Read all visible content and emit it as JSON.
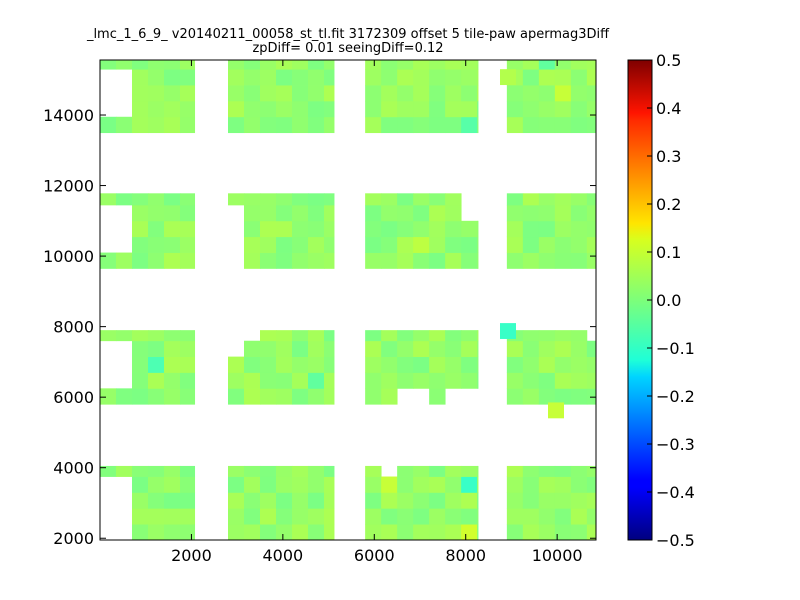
{
  "chart_data": {
    "type": "heatmap",
    "title_lines": [
      "_lmc_1_6_9_ v20140211_00058_st_tl.fit 3172309 offset 5 tile-paw apermag3Diff",
      "zpDiff= 0.01 seeingDiff=0.12"
    ],
    "xlim": [
      0,
      10850
    ],
    "ylim": [
      1950,
      15560
    ],
    "x_ticks": [
      2000,
      4000,
      6000,
      8000,
      10000
    ],
    "x_tick_labels": [
      "2000",
      "4000",
      "6000",
      "8000",
      "10000"
    ],
    "y_ticks": [
      2000,
      4000,
      6000,
      8000,
      10000,
      12000,
      14000
    ],
    "y_tick_labels": [
      "2000",
      "4000",
      "6000",
      "8000",
      "10000",
      "12000",
      "14000"
    ],
    "colorbar": {
      "colormap": "jet",
      "vmin": -0.5,
      "vmax": 0.5,
      "ticks": [
        0.5,
        0.4,
        0.3,
        0.2,
        0.1,
        0.0,
        -0.1,
        -0.2,
        -0.3,
        -0.4,
        -0.5
      ],
      "tick_labels": [
        "0.5",
        "0.4",
        "0.3",
        "0.2",
        "0.1",
        "0.0",
        "−0.1",
        "−0.2",
        "−0.3",
        "−0.4",
        "−0.5"
      ]
    },
    "cell_size": [
      350,
      450
    ],
    "typical_value": 0.02,
    "detector_tiles": [
      {
        "x": [
          0,
          2070
        ],
        "y": [
          13500,
          15560
        ]
      },
      {
        "x": [
          2800,
          5120
        ],
        "y": [
          13500,
          15560
        ]
      },
      {
        "x": [
          5800,
          8270
        ],
        "y": [
          13500,
          15560
        ]
      },
      {
        "x": [
          8900,
          10850
        ],
        "y": [
          13500,
          15560
        ]
      },
      {
        "x": [
          0,
          2070
        ],
        "y": [
          9650,
          11780
        ]
      },
      {
        "x": [
          2800,
          5120
        ],
        "y": [
          9650,
          11780
        ]
      },
      {
        "x": [
          5800,
          8270
        ],
        "y": [
          9650,
          11780
        ]
      },
      {
        "x": [
          8900,
          10850
        ],
        "y": [
          9650,
          11780
        ]
      },
      {
        "x": [
          0,
          2070
        ],
        "y": [
          5800,
          7900
        ]
      },
      {
        "x": [
          2800,
          5120
        ],
        "y": [
          5800,
          7900
        ]
      },
      {
        "x": [
          5800,
          8270
        ],
        "y": [
          5800,
          7900
        ]
      },
      {
        "x": [
          8900,
          10850
        ],
        "y": [
          5800,
          7900
        ]
      },
      {
        "x": [
          0,
          2070
        ],
        "y": [
          1950,
          4050
        ]
      },
      {
        "x": [
          2800,
          5120
        ],
        "y": [
          1950,
          4050
        ]
      },
      {
        "x": [
          5800,
          8270
        ],
        "y": [
          1950,
          4050
        ]
      },
      {
        "x": [
          8900,
          10850
        ],
        "y": [
          1950,
          4050
        ]
      }
    ],
    "missing_regions": [
      {
        "x": [
          0,
          700
        ],
        "y": [
          13900,
          15250
        ]
      },
      {
        "x": [
          0,
          700
        ],
        "y": [
          10050,
          11450
        ]
      },
      {
        "x": [
          0,
          700
        ],
        "y": [
          6200,
          7550
        ]
      },
      {
        "x": [
          0,
          700
        ],
        "y": [
          1950,
          3700
        ]
      },
      {
        "x": [
          2800,
          3150
        ],
        "y": [
          9650,
          11450
        ]
      },
      {
        "x": [
          2800,
          3500
        ],
        "y": [
          7550,
          7900
        ]
      },
      {
        "x": [
          2800,
          3150
        ],
        "y": [
          7150,
          7550
        ]
      },
      {
        "x": [
          7900,
          8270
        ],
        "y": [
          10850,
          11780
        ]
      },
      {
        "x": [
          8600,
          8900
        ],
        "y": [
          15250,
          15560
        ]
      },
      {
        "x": [
          8600,
          8900
        ],
        "y": [
          14900,
          15250
        ]
      },
      {
        "x": [
          10550,
          10850
        ],
        "y": [
          7550,
          7900
        ]
      },
      {
        "x": [
          8570,
          8900
        ],
        "y": [
          7400,
          7900
        ]
      },
      {
        "x": [
          6500,
          6800
        ],
        "y": [
          5800,
          6100
        ]
      },
      {
        "x": [
          7000,
          7300
        ],
        "y": [
          5800,
          6100
        ]
      },
      {
        "x": [
          7600,
          8270
        ],
        "y": [
          5800,
          6450
        ]
      },
      {
        "x": [
          6150,
          6450
        ],
        "y": [
          3650,
          4050
        ]
      },
      {
        "x": [
          8600,
          8900
        ],
        "y": [
          1950,
          2600
        ]
      }
    ],
    "cell_overrides": [
      {
        "x": 6600,
        "y": 5950,
        "v": 0.1
      },
      {
        "x": 1070,
        "y": 7050,
        "v": -0.05
      },
      {
        "x": 8750,
        "y": 7650,
        "v": -0.07
      },
      {
        "x": 8100,
        "y": 3400,
        "v": -0.07
      },
      {
        "x": 9950,
        "y": 5650,
        "v": 0.07
      },
      {
        "x": 8100,
        "y": 2150,
        "v": 0.08
      },
      {
        "x": 8750,
        "y": 15150,
        "v": 0.05
      },
      {
        "x": 8100,
        "y": 13700,
        "v": -0.04
      },
      {
        "x": 6300,
        "y": 3500,
        "v": 0.07
      },
      {
        "x": 6900,
        "y": 10350,
        "v": 0.06
      },
      {
        "x": 4800,
        "y": 6600,
        "v": -0.03
      },
      {
        "x": 10150,
        "y": 14550,
        "v": 0.07
      },
      {
        "x": 9600,
        "y": 15350,
        "v": -0.03
      }
    ]
  }
}
